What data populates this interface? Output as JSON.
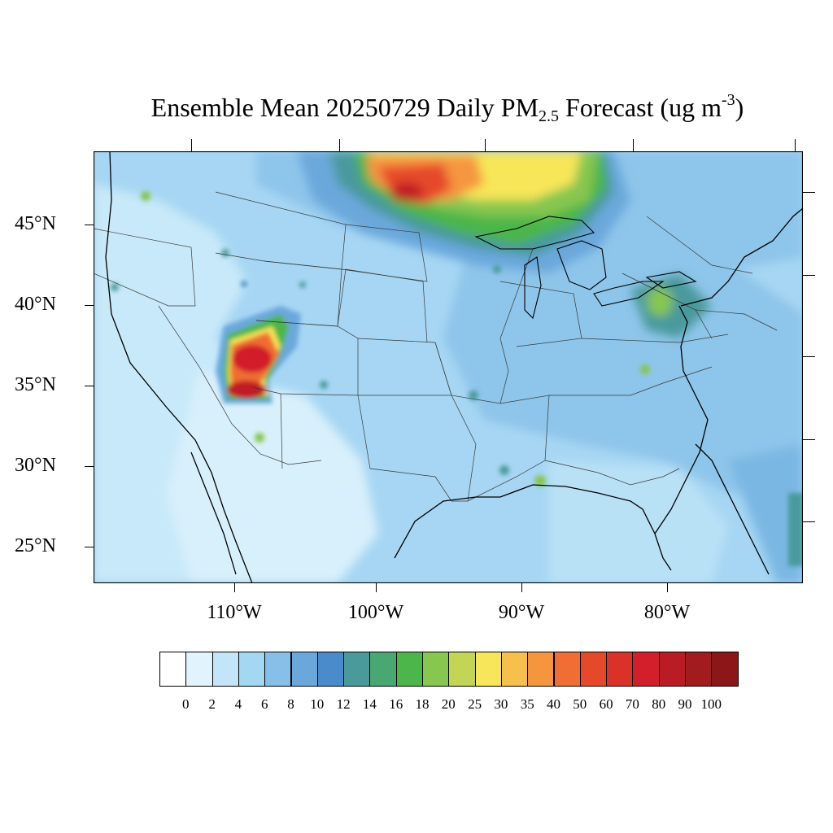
{
  "title": {
    "prefix": "Ensemble Mean 20250729 Daily PM",
    "sub": "2.5",
    "middle": " Forecast (ug m",
    "sup": "-3",
    "suffix": ")"
  },
  "map": {
    "lat_labels": [
      "45°N",
      "40°N",
      "35°N",
      "30°N",
      "25°N"
    ],
    "lon_labels": [
      "110°W",
      "100°W",
      "90°W",
      "80°W"
    ],
    "base_color": "#a6d6f3"
  },
  "colorbar": {
    "labels": [
      "0",
      "2",
      "4",
      "6",
      "8",
      "10",
      "12",
      "14",
      "16",
      "18",
      "20",
      "25",
      "30",
      "35",
      "40",
      "50",
      "60",
      "70",
      "80",
      "90",
      "100"
    ],
    "colors": [
      "#ffffff",
      "#e1f3fc",
      "#c2e6f8",
      "#a3d8f2",
      "#86c0e8",
      "#6aa8dc",
      "#4a8bcb",
      "#4a9a9c",
      "#49a871",
      "#4cb64a",
      "#87c64f",
      "#c2d555",
      "#f7e659",
      "#f7bf4b",
      "#f5963f",
      "#f06d33",
      "#e6492a",
      "#da3228",
      "#d21f2b",
      "#b91c24",
      "#a11b1f",
      "#8c1719"
    ]
  }
}
